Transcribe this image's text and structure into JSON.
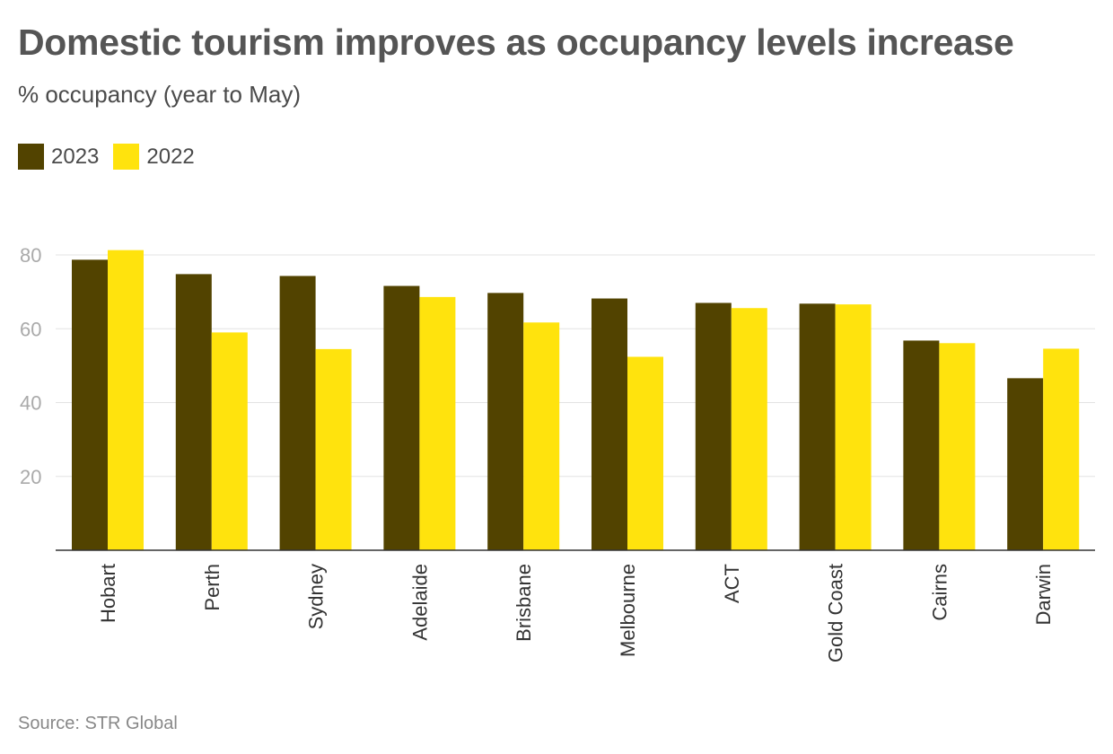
{
  "chart_data": {
    "type": "bar",
    "title": "Domestic tourism improves as occupancy levels increase",
    "subtitle": "% occupancy (year to May)",
    "categories": [
      "Hobart",
      "Perth",
      "Sydney",
      "Adelaide",
      "Brisbane",
      "Melbourne",
      "ACT",
      "Gold Coast",
      "Cairns",
      "Darwin"
    ],
    "series": [
      {
        "name": "2023",
        "color": "#524300",
        "values": [
          78.7,
          74.8,
          74.3,
          71.6,
          69.7,
          68.2,
          67.0,
          66.8,
          56.8,
          46.6
        ]
      },
      {
        "name": "2022",
        "color": "#ffe30d",
        "values": [
          81.3,
          59.0,
          54.5,
          68.6,
          61.7,
          52.4,
          65.6,
          66.6,
          56.1,
          54.6
        ]
      }
    ],
    "yticks": [
      20,
      40,
      60,
      80
    ],
    "ylim": [
      0,
      80
    ],
    "grid": true,
    "legend_position": "top-left",
    "source": "Source: STR Global"
  }
}
